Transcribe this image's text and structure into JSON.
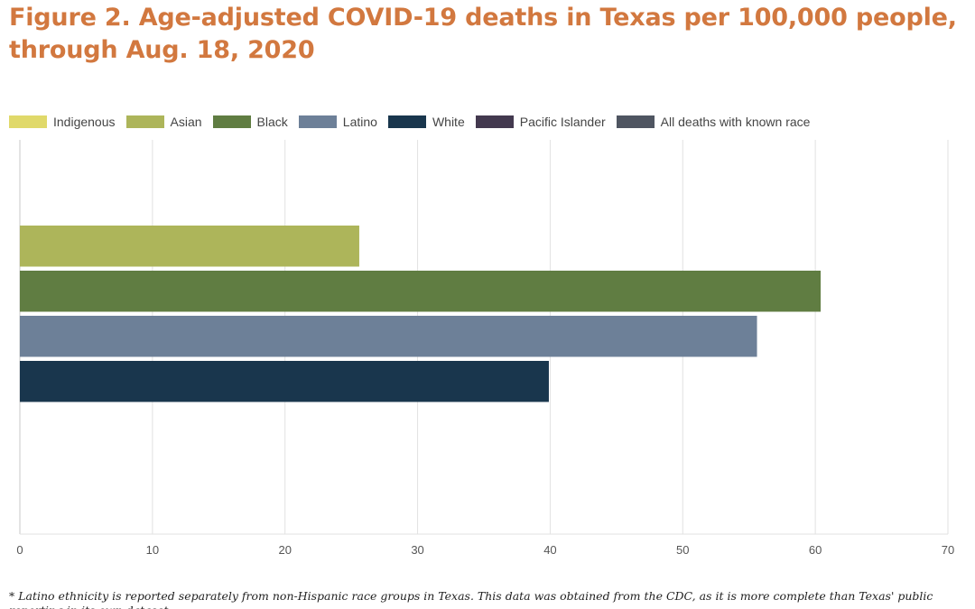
{
  "chart_data": {
    "type": "bar",
    "orientation": "horizontal",
    "title_lines": [
      "Figure 2. Age-adjusted COVID-19 deaths in Texas per 100,000 people,",
      "through Aug. 18, 2020"
    ],
    "series": [
      {
        "name": "Indigenous",
        "value": null,
        "color": "#e0d96a"
      },
      {
        "name": "Asian",
        "value": 25.6,
        "color": "#adb55a"
      },
      {
        "name": "Black",
        "value": 60.4,
        "color": "#607d42"
      },
      {
        "name": "Latino",
        "value": 55.6,
        "color": "#6d8098"
      },
      {
        "name": "White",
        "value": 39.9,
        "color": "#19364d"
      },
      {
        "name": "Pacific Islander",
        "value": null,
        "color": "#43394f"
      },
      {
        "name": "All deaths with known race",
        "value": null,
        "color": "#4f5561"
      }
    ],
    "xlim": [
      0,
      70
    ],
    "xticks": [
      "0",
      "10",
      "20",
      "30",
      "40",
      "50",
      "60",
      "70"
    ],
    "grid": true,
    "legend_position": "top",
    "footnote": "* Latino ethnicity is reported separately from non-Hispanic race groups in Texas. This data was obtained from the CDC, as it is more complete than Texas' public reporting in its own dataset."
  }
}
